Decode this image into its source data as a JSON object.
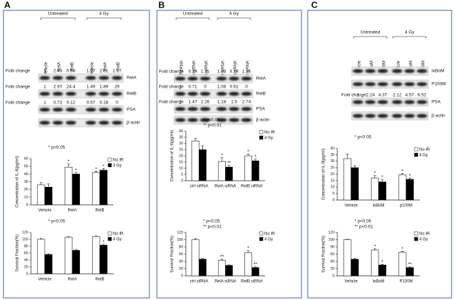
{
  "panel_labels": [
    "A",
    "B",
    "C"
  ],
  "blots": [
    {
      "groups": [
        "Untreated",
        "4 Gy"
      ],
      "lanes": [
        "Vehicle",
        "RelA",
        "RelB",
        "Vehicle",
        "RelA",
        "RelB"
      ],
      "rows": [
        {
          "label": "RelA",
          "fold_label": "Fold change",
          "fold": [
            1,
            2.45,
            0.68,
            1.07,
            2.81,
            1.17
          ]
        },
        {
          "label": "RelB",
          "fold_label": "Fold change",
          "fold": [
            1,
            2.97,
            24.4,
            1.49,
            1.89,
            29
          ]
        },
        {
          "label": "PSA",
          "fold_label": "Fold change",
          "fold": [
            1,
            0.72,
            0.12,
            0.57,
            0.18,
            0
          ]
        },
        {
          "label": "β-actin"
        }
      ]
    },
    {
      "groups": [
        "Untreated",
        "4 Gy"
      ],
      "lanes": [
        "Ctrl siRNA",
        "RelA siRNA",
        "RelB siRNA",
        "Ctrl siRNA",
        "RelA siRNA",
        "RelB siRNA"
      ],
      "rows": [
        {
          "label": "RelA",
          "fold_label": "Fold change",
          "fold": [
            1,
            0.29,
            1.11,
            1.03,
            0.19,
            1.16
          ]
        },
        {
          "label": "RelB",
          "fold_label": "Fold change",
          "fold": [
            1,
            0.71,
            0,
            1.08,
            0.61,
            0
          ]
        },
        {
          "label": "PSA",
          "fold_label": "Fold change",
          "fold": [
            1,
            1.47,
            2.26,
            1.18,
            1.5,
            2.74
          ]
        },
        {
          "label": "β-actin"
        }
      ]
    },
    {
      "groups": [
        "Untreated",
        "4 Gy"
      ],
      "lanes": [
        "Vehicle",
        "IκBαM",
        "P100M",
        "Vehicle",
        "IκBαM",
        "P100M"
      ],
      "rows": [
        {
          "label": "IκBαM"
        },
        {
          "label": "P100M"
        },
        {
          "label": "PSA",
          "fold_label": "Fold change",
          "fold": [
            1,
            2.24,
            4.37,
            2.12,
            4.57,
            6.52
          ]
        },
        {
          "label": "β-actin"
        }
      ]
    }
  ],
  "chart_data": [
    {
      "type": "bar",
      "y_label": "Concentration of IL-6(pg/ml)",
      "annotations": [
        "* p<0.05"
      ],
      "categories": [
        "Vehicle",
        "RelA",
        "RelB"
      ],
      "ylim": [
        0,
        60
      ],
      "yticks": [
        0,
        10,
        20,
        30,
        40,
        50,
        60
      ],
      "series": [
        {
          "name": "No IR",
          "color": "#ffffff",
          "values": [
            26,
            49,
            42
          ],
          "errors": [
            3,
            4,
            1.5
          ],
          "stars": [
            null,
            "*",
            "*"
          ]
        },
        {
          "name": "4 Gy",
          "color": "#000000",
          "values": [
            23,
            40,
            45
          ],
          "errors": [
            4,
            2,
            2
          ],
          "stars": [
            null,
            "*",
            "*"
          ]
        }
      ]
    },
    {
      "type": "bar",
      "y_label": "Survival Fraction(%)",
      "annotations": [
        "* p<0.05"
      ],
      "categories": [
        "Vehicle",
        "RelA",
        "RelB"
      ],
      "ylim": [
        0,
        120
      ],
      "yticks": [
        0,
        20,
        40,
        60,
        80,
        100,
        120
      ],
      "series": [
        {
          "name": "No IR",
          "color": "#ffffff",
          "values": [
            100,
            106,
            108
          ],
          "errors": [
            3,
            2,
            2
          ],
          "stars": [
            null,
            null,
            null
          ]
        },
        {
          "name": "4 Gy",
          "color": "#000000",
          "values": [
            56,
            68,
            83
          ],
          "errors": [
            2,
            2,
            3
          ],
          "stars": [
            null,
            null,
            "*"
          ]
        }
      ]
    },
    {
      "type": "bar",
      "y_label": "Concentration of IL-6(pg/ml)",
      "annotations": [
        "* p<0.05",
        "** p<0.01"
      ],
      "categories": [
        "ctrl siRNA",
        "RelA siRNA",
        "RelB siRNA"
      ],
      "ylim": [
        0,
        40
      ],
      "yticks": [
        0,
        5,
        10,
        15,
        20,
        25,
        30,
        35,
        40
      ],
      "series": [
        {
          "name": "No IR",
          "color": "#ffffff",
          "values": [
            32,
            15.5,
            20
          ],
          "errors": [
            2,
            3,
            1.5
          ],
          "stars": [
            null,
            "*",
            "*"
          ]
        },
        {
          "name": "4 Gy",
          "color": "#000000",
          "values": [
            25,
            11,
            16
          ],
          "errors": [
            3,
            1.5,
            1.5
          ],
          "stars": [
            null,
            "**",
            "*"
          ]
        }
      ]
    },
    {
      "type": "bar",
      "y_label": "Survival Fraction(%)",
      "annotations": [
        "* p<0.05",
        "** p<0.01"
      ],
      "categories": [
        "ctrl siRNA",
        "RelA siRNA",
        "RelB siRNA"
      ],
      "ylim": [
        0,
        120
      ],
      "yticks": [
        0,
        20,
        40,
        60,
        80,
        100,
        120
      ],
      "series": [
        {
          "name": "No IR",
          "color": "#ffffff",
          "values": [
            100,
            43,
            64
          ],
          "errors": [
            3,
            3,
            6
          ],
          "stars": [
            null,
            "**",
            "*"
          ]
        },
        {
          "name": "4 Gy",
          "color": "#000000",
          "values": [
            46,
            29,
            23
          ],
          "errors": [
            2,
            1.5,
            2
          ],
          "stars": [
            null,
            null,
            "**"
          ]
        }
      ]
    },
    {
      "type": "bar",
      "y_label": "Concentration of IL-8(pg/ml)",
      "annotations": [
        "* p<0.05"
      ],
      "categories": [
        "Vehicle",
        "IκBαM",
        "p100M"
      ],
      "ylim": [
        0,
        40
      ],
      "yticks": [
        0,
        5,
        10,
        15,
        20,
        25,
        30,
        35,
        40
      ],
      "series": [
        {
          "name": "No IR",
          "color": "#ffffff",
          "values": [
            32,
            17,
            19.5
          ],
          "errors": [
            3.5,
            2,
            1
          ],
          "stars": [
            null,
            "*",
            "*"
          ]
        },
        {
          "name": "4 Gy",
          "color": "#000000",
          "values": [
            25,
            14,
            16
          ],
          "errors": [
            1.5,
            2,
            1
          ],
          "stars": [
            null,
            "*",
            "*"
          ]
        }
      ]
    },
    {
      "type": "bar",
      "y_label": "Survival Fraction(%)",
      "annotations": [
        "* p<0.05",
        "** p<0.01"
      ],
      "categories": [
        "Vehicle",
        "IκBαM",
        "P100M"
      ],
      "ylim": [
        0,
        120
      ],
      "yticks": [
        0,
        20,
        40,
        60,
        80,
        100,
        120
      ],
      "series": [
        {
          "name": "No IR",
          "color": "#ffffff",
          "values": [
            100,
            71,
            65
          ],
          "errors": [
            1,
            4,
            3
          ],
          "stars": [
            null,
            "*",
            "*"
          ]
        },
        {
          "name": "4 Gy",
          "color": "#000000",
          "values": [
            46,
            30,
            23
          ],
          "errors": [
            2,
            2,
            2
          ],
          "stars": [
            null,
            "*",
            "**"
          ]
        }
      ]
    }
  ]
}
